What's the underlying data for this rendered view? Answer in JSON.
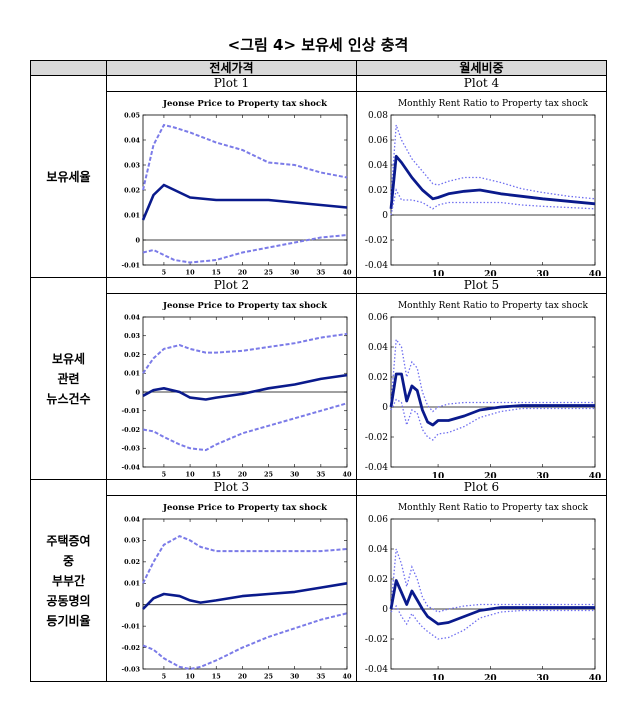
{
  "figure_title": "<그림 4> 보유세 인상 충격",
  "columns": [
    "전세가격",
    "월세비중"
  ],
  "rows": [
    {
      "label": [
        "보유세율"
      ],
      "plots": [
        "Plot 1",
        "Plot 4"
      ]
    },
    {
      "label": [
        "보유세",
        "관련",
        "뉴스건수"
      ],
      "plots": [
        "Plot 2",
        "Plot 5"
      ]
    },
    {
      "label": [
        "주택증여",
        "중",
        "부부간",
        "공동명의",
        "등기비율"
      ],
      "plots": [
        "Plot 3",
        "Plot 6"
      ]
    }
  ],
  "colors": {
    "center": "#0a1a8c",
    "band_jeonse": "#7b7be8",
    "band_rent": "#6f6ff0",
    "header_bg": "#d9d9d9"
  },
  "chart_data": [
    {
      "id": "plot1",
      "type": "line",
      "title": "Jeonse Price to Property tax shock",
      "style": "jeonse",
      "xlim": [
        1,
        40
      ],
      "xticks": [
        5,
        10,
        15,
        20,
        25,
        30,
        35,
        40
      ],
      "ylim": [
        -0.01,
        0.05
      ],
      "yticks": [
        -0.01,
        0,
        0.01,
        0.02,
        0.03,
        0.04,
        0.05
      ],
      "ytick_labels": [
        "-0.01",
        "0",
        "0.01",
        "0.02",
        "0.03",
        "0.04",
        "0.05"
      ],
      "x": [
        1,
        3,
        5,
        7,
        10,
        15,
        20,
        25,
        30,
        35,
        40
      ],
      "series": [
        {
          "name": "upper",
          "values": [
            0.02,
            0.038,
            0.046,
            0.045,
            0.043,
            0.039,
            0.036,
            0.031,
            0.03,
            0.027,
            0.025
          ]
        },
        {
          "name": "median",
          "values": [
            0.008,
            0.018,
            0.022,
            0.02,
            0.017,
            0.016,
            0.016,
            0.016,
            0.015,
            0.014,
            0.013
          ]
        },
        {
          "name": "lower",
          "values": [
            -0.005,
            -0.004,
            -0.006,
            -0.008,
            -0.009,
            -0.008,
            -0.005,
            -0.003,
            -0.001,
            0.001,
            0.002
          ]
        }
      ]
    },
    {
      "id": "plot4",
      "type": "line",
      "title": "Monthly Rent Ratio to Property tax shock",
      "style": "rent",
      "xlim": [
        1,
        40
      ],
      "xticks": [
        10,
        20,
        30,
        40
      ],
      "ylim": [
        -0.04,
        0.08
      ],
      "yticks": [
        -0.04,
        -0.02,
        0,
        0.02,
        0.04,
        0.06,
        0.08
      ],
      "ytick_labels": [
        "-0.04",
        "-0.02",
        "0",
        "0.02",
        "0.04",
        "0.06",
        "0.08"
      ],
      "x": [
        1,
        2,
        3,
        5,
        7,
        9,
        10,
        12,
        15,
        18,
        22,
        26,
        30,
        35,
        40
      ],
      "series": [
        {
          "name": "upper",
          "values": [
            0.015,
            0.072,
            0.06,
            0.045,
            0.035,
            0.025,
            0.024,
            0.027,
            0.03,
            0.03,
            0.026,
            0.021,
            0.018,
            0.015,
            0.013
          ]
        },
        {
          "name": "median",
          "values": [
            0.005,
            0.047,
            0.042,
            0.03,
            0.02,
            0.013,
            0.014,
            0.017,
            0.019,
            0.02,
            0.017,
            0.015,
            0.013,
            0.011,
            0.009
          ]
        },
        {
          "name": "lower",
          "values": [
            0.0,
            0.02,
            0.012,
            0.012,
            0.01,
            0.005,
            0.008,
            0.01,
            0.01,
            0.01,
            0.01,
            0.008,
            0.007,
            0.006,
            0.005
          ]
        }
      ]
    },
    {
      "id": "plot2",
      "type": "line",
      "title": "Jeonse Price to Property tax shock",
      "style": "jeonse",
      "xlim": [
        1,
        40
      ],
      "xticks": [
        5,
        10,
        15,
        20,
        25,
        30,
        35,
        40
      ],
      "ylim": [
        -0.04,
        0.04
      ],
      "yticks": [
        -0.04,
        -0.03,
        -0.02,
        -0.01,
        0,
        0.01,
        0.02,
        0.03,
        0.04
      ],
      "ytick_labels": [
        "-0.04",
        "-0.03",
        "-0.02",
        "-0.01",
        "0",
        "0.01",
        "0.02",
        "0.03",
        "0.04"
      ],
      "x": [
        1,
        3,
        5,
        8,
        10,
        13,
        15,
        20,
        25,
        30,
        35,
        40
      ],
      "series": [
        {
          "name": "upper",
          "values": [
            0.01,
            0.018,
            0.023,
            0.025,
            0.023,
            0.021,
            0.021,
            0.022,
            0.024,
            0.026,
            0.029,
            0.031
          ]
        },
        {
          "name": "median",
          "values": [
            -0.002,
            0.001,
            0.002,
            0.0,
            -0.003,
            -0.004,
            -0.003,
            -0.001,
            0.002,
            0.004,
            0.007,
            0.009
          ]
        },
        {
          "name": "lower",
          "values": [
            -0.02,
            -0.021,
            -0.024,
            -0.028,
            -0.03,
            -0.031,
            -0.028,
            -0.022,
            -0.018,
            -0.014,
            -0.01,
            -0.006
          ]
        }
      ]
    },
    {
      "id": "plot5",
      "type": "line",
      "title": "Monthly Rent Ratio to Property tax shock",
      "style": "rent",
      "xlim": [
        1,
        40
      ],
      "xticks": [
        10,
        20,
        30,
        40
      ],
      "ylim": [
        -0.04,
        0.06
      ],
      "yticks": [
        -0.04,
        -0.02,
        0,
        0.02,
        0.04,
        0.06
      ],
      "ytick_labels": [
        "-0.04",
        "-0.02",
        "0",
        "0.02",
        "0.04",
        "0.06"
      ],
      "x": [
        1,
        2,
        3,
        4,
        5,
        6,
        7,
        8,
        9,
        10,
        12,
        15,
        18,
        22,
        26,
        30,
        35,
        40
      ],
      "series": [
        {
          "name": "upper",
          "values": [
            0.002,
            0.045,
            0.04,
            0.02,
            0.03,
            0.026,
            0.01,
            0.001,
            -0.003,
            0.0,
            0.002,
            0.003,
            0.003,
            0.003,
            0.003,
            0.003,
            0.003,
            0.003
          ]
        },
        {
          "name": "median",
          "values": [
            0.0,
            0.022,
            0.022,
            0.004,
            0.014,
            0.011,
            -0.002,
            -0.01,
            -0.012,
            -0.009,
            -0.009,
            -0.006,
            -0.002,
            0.0,
            0.001,
            0.001,
            0.001,
            0.001
          ]
        },
        {
          "name": "lower",
          "values": [
            -0.002,
            0.005,
            0.003,
            -0.012,
            -0.002,
            -0.004,
            -0.015,
            -0.02,
            -0.022,
            -0.018,
            -0.017,
            -0.013,
            -0.007,
            -0.003,
            -0.001,
            -0.001,
            -0.001,
            -0.001
          ]
        }
      ]
    },
    {
      "id": "plot3",
      "type": "line",
      "title": "Jeonse Price to Property tax shock",
      "style": "jeonse",
      "xlim": [
        1,
        40
      ],
      "xticks": [
        5,
        10,
        15,
        20,
        25,
        30,
        35,
        40
      ],
      "ylim": [
        -0.03,
        0.04
      ],
      "yticks": [
        -0.03,
        -0.02,
        -0.01,
        0,
        0.01,
        0.02,
        0.03,
        0.04
      ],
      "ytick_labels": [
        "-0.03",
        "-0.02",
        "-0.01",
        "0",
        "0.01",
        "0.02",
        "0.03",
        "0.04"
      ],
      "x": [
        1,
        3,
        5,
        8,
        10,
        12,
        15,
        20,
        25,
        30,
        35,
        40
      ],
      "series": [
        {
          "name": "upper",
          "values": [
            0.01,
            0.02,
            0.028,
            0.032,
            0.03,
            0.027,
            0.025,
            0.025,
            0.025,
            0.025,
            0.025,
            0.026
          ]
        },
        {
          "name": "median",
          "values": [
            -0.002,
            0.003,
            0.005,
            0.004,
            0.002,
            0.001,
            0.002,
            0.004,
            0.005,
            0.006,
            0.008,
            0.01
          ]
        },
        {
          "name": "lower",
          "values": [
            -0.019,
            -0.021,
            -0.025,
            -0.029,
            -0.03,
            -0.029,
            -0.026,
            -0.02,
            -0.015,
            -0.011,
            -0.007,
            -0.004
          ]
        }
      ]
    },
    {
      "id": "plot6",
      "type": "line",
      "title": "Monthly Rent Ratio to Property tax shock",
      "style": "rent",
      "xlim": [
        1,
        40
      ],
      "xticks": [
        10,
        20,
        30,
        40
      ],
      "ylim": [
        -0.04,
        0.06
      ],
      "yticks": [
        -0.04,
        -0.02,
        0,
        0.02,
        0.04,
        0.06
      ],
      "ytick_labels": [
        "-0.04",
        "-0.02",
        "0",
        "0.02",
        "0.04",
        "0.06"
      ],
      "x": [
        1,
        2,
        3,
        4,
        5,
        6,
        7,
        8,
        10,
        12,
        15,
        18,
        22,
        26,
        30,
        35,
        40
      ],
      "series": [
        {
          "name": "upper",
          "values": [
            0.002,
            0.04,
            0.03,
            0.015,
            0.028,
            0.02,
            0.008,
            0.002,
            -0.002,
            0.0,
            0.002,
            0.003,
            0.003,
            0.003,
            0.003,
            0.003,
            0.003
          ]
        },
        {
          "name": "median",
          "values": [
            0.0,
            0.019,
            0.011,
            0.003,
            0.012,
            0.006,
            0.0,
            -0.005,
            -0.01,
            -0.009,
            -0.005,
            -0.001,
            0.001,
            0.001,
            0.001,
            0.001,
            0.001
          ]
        },
        {
          "name": "lower",
          "values": [
            -0.002,
            0.002,
            -0.005,
            -0.01,
            -0.003,
            -0.008,
            -0.012,
            -0.015,
            -0.02,
            -0.019,
            -0.014,
            -0.006,
            -0.002,
            -0.001,
            -0.001,
            -0.001,
            -0.001
          ]
        }
      ]
    }
  ]
}
